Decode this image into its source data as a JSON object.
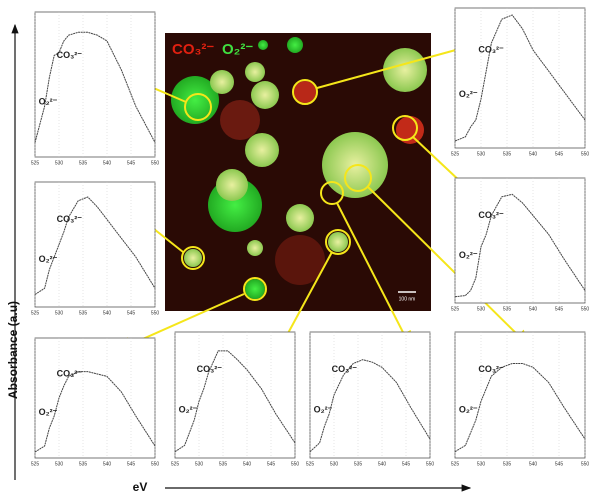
{
  "figure": {
    "y_label": "Absorbance (a.u)",
    "x_label": "eV",
    "image_labels": [
      "CO₃²⁻",
      "O₂²⁻"
    ],
    "scale_bar": "100 nm"
  },
  "chart_data": [
    {
      "type": "line",
      "x": [
        525,
        527,
        528,
        529,
        530,
        531,
        532,
        534,
        536,
        538,
        540,
        543,
        546,
        550
      ],
      "values": [
        0.1,
        0.35,
        0.55,
        0.7,
        0.72,
        0.8,
        0.84,
        0.86,
        0.86,
        0.84,
        0.8,
        0.6,
        0.35,
        0.1
      ],
      "color": "#444444",
      "xlim": [
        525,
        550
      ],
      "ylim": [
        0,
        1
      ],
      "xticks": [
        525,
        530,
        535,
        540,
        545,
        550
      ],
      "grid": true,
      "annotations": [
        "CO₃²⁻",
        "O₂²⁻"
      ]
    },
    {
      "type": "line",
      "x": [
        525,
        527,
        528,
        529,
        530,
        531,
        532,
        534,
        536,
        538,
        540,
        543,
        546,
        550
      ],
      "values": [
        0.05,
        0.08,
        0.15,
        0.2,
        0.35,
        0.55,
        0.75,
        0.92,
        0.95,
        0.85,
        0.7,
        0.55,
        0.4,
        0.2
      ],
      "color": "#444444",
      "xlim": [
        525,
        550
      ],
      "ylim": [
        0,
        1
      ],
      "xticks": [
        525,
        530,
        535,
        540,
        545,
        550
      ],
      "grid": true,
      "annotations": [
        "CO₃²⁻",
        "O₂²⁻"
      ]
    },
    {
      "type": "line",
      "x": [
        525,
        527,
        528,
        529,
        530,
        531,
        532,
        534,
        536,
        538,
        540,
        543,
        546,
        550
      ],
      "values": [
        0.1,
        0.15,
        0.3,
        0.4,
        0.5,
        0.6,
        0.72,
        0.85,
        0.88,
        0.8,
        0.7,
        0.55,
        0.4,
        0.15
      ],
      "color": "#444444",
      "xlim": [
        525,
        550
      ],
      "ylim": [
        0,
        1
      ],
      "xticks": [
        525,
        530,
        535,
        540,
        545,
        550
      ],
      "grid": true,
      "annotations": [
        "CO₃²⁻",
        "O₂²⁻"
      ]
    },
    {
      "type": "line",
      "x": [
        525,
        527,
        528,
        529,
        530,
        531,
        532,
        534,
        536,
        538,
        540,
        543,
        546,
        550
      ],
      "values": [
        0.05,
        0.06,
        0.1,
        0.2,
        0.45,
        0.55,
        0.7,
        0.85,
        0.87,
        0.8,
        0.7,
        0.55,
        0.35,
        0.1
      ],
      "color": "#444444",
      "xlim": [
        525,
        550
      ],
      "ylim": [
        0,
        1
      ],
      "xticks": [
        525,
        530,
        535,
        540,
        545,
        550
      ],
      "grid": true,
      "annotations": [
        "CO₃²⁻",
        "O₂²⁻"
      ]
    },
    {
      "type": "line",
      "x": [
        525,
        527,
        528,
        529,
        530,
        531,
        532,
        534,
        536,
        538,
        540,
        543,
        546,
        550
      ],
      "values": [
        0.05,
        0.1,
        0.25,
        0.35,
        0.5,
        0.6,
        0.68,
        0.72,
        0.72,
        0.7,
        0.68,
        0.55,
        0.35,
        0.1
      ],
      "color": "#444444",
      "xlim": [
        525,
        550
      ],
      "ylim": [
        0,
        1
      ],
      "xticks": [
        525,
        530,
        535,
        540,
        545,
        550
      ],
      "grid": true,
      "annotations": [
        "CO₃²⁻",
        "O₂²⁻"
      ]
    },
    {
      "type": "line",
      "x": [
        525,
        527,
        528,
        529,
        530,
        531,
        532,
        534,
        536,
        538,
        540,
        543,
        546,
        550
      ],
      "values": [
        0.05,
        0.1,
        0.2,
        0.3,
        0.45,
        0.55,
        0.68,
        0.85,
        0.85,
        0.78,
        0.7,
        0.55,
        0.35,
        0.12
      ],
      "color": "#444444",
      "xlim": [
        525,
        550
      ],
      "ylim": [
        0,
        1
      ],
      "xticks": [
        525,
        530,
        535,
        540,
        545,
        550
      ],
      "grid": true,
      "annotations": [
        "CO₃²⁻",
        "O₂²⁻"
      ]
    },
    {
      "type": "line",
      "x": [
        525,
        527,
        528,
        529,
        530,
        531,
        532,
        534,
        536,
        538,
        540,
        543,
        546,
        550
      ],
      "values": [
        0.05,
        0.12,
        0.25,
        0.35,
        0.5,
        0.58,
        0.66,
        0.75,
        0.78,
        0.76,
        0.72,
        0.6,
        0.4,
        0.15
      ],
      "color": "#444444",
      "xlim": [
        525,
        550
      ],
      "ylim": [
        0,
        1
      ],
      "xticks": [
        525,
        530,
        535,
        540,
        545,
        550
      ],
      "grid": true,
      "annotations": [
        "CO₃²⁻",
        "O₂²⁻"
      ]
    },
    {
      "type": "line",
      "x": [
        525,
        527,
        528,
        529,
        530,
        531,
        532,
        534,
        536,
        538,
        540,
        543,
        546,
        550
      ],
      "values": [
        0.05,
        0.1,
        0.2,
        0.3,
        0.45,
        0.55,
        0.65,
        0.72,
        0.75,
        0.75,
        0.72,
        0.6,
        0.4,
        0.15
      ],
      "color": "#444444",
      "xlim": [
        525,
        550
      ],
      "ylim": [
        0,
        1
      ],
      "xticks": [
        525,
        530,
        535,
        540,
        545,
        550
      ],
      "grid": true,
      "annotations": [
        "CO₃²⁻",
        "O₂²⁻"
      ]
    }
  ]
}
